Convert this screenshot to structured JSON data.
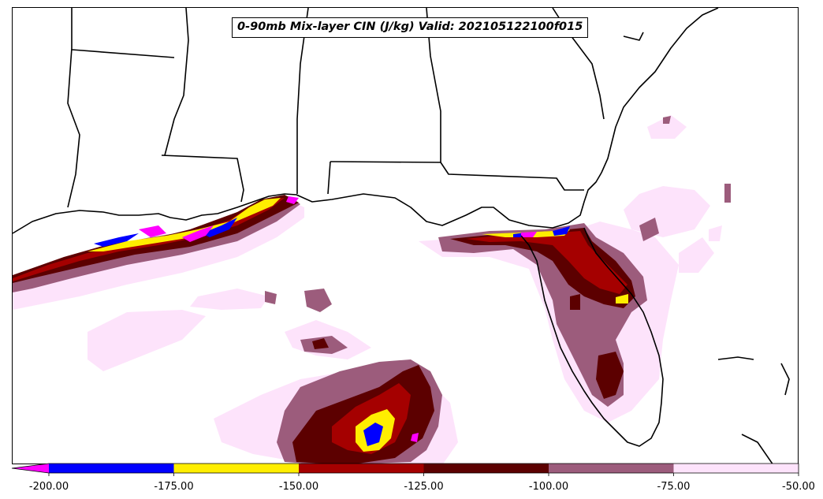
{
  "title": "0-90mb Mix-layer CIN (J/kg) Valid: 202105122100f015",
  "legend": {
    "extend": "min",
    "ticks": [
      "-200.00",
      "-175.00",
      "-150.00",
      "-125.00",
      "-100.00",
      "-75.00",
      "-50.00"
    ],
    "bins": [
      {
        "range": [
          -250,
          -200
        ],
        "color": "#ff00ff"
      },
      {
        "range": [
          -200,
          -175
        ],
        "color": "#0000ff"
      },
      {
        "range": [
          -175,
          -150
        ],
        "color": "#ffee00"
      },
      {
        "range": [
          -150,
          -125
        ],
        "color": "#a50000"
      },
      {
        "range": [
          -125,
          -100
        ],
        "color": "#5c0000"
      },
      {
        "range": [
          -100,
          -75
        ],
        "color": "#9c5c7c"
      },
      {
        "range": [
          -75,
          -50
        ],
        "color": "#fde3fb"
      }
    ]
  },
  "map": {
    "region": "Gulf of Mexico and southeastern United States",
    "land_color": "#ffffff",
    "water_color": "#ffffff",
    "boundary_color": "#000000"
  }
}
